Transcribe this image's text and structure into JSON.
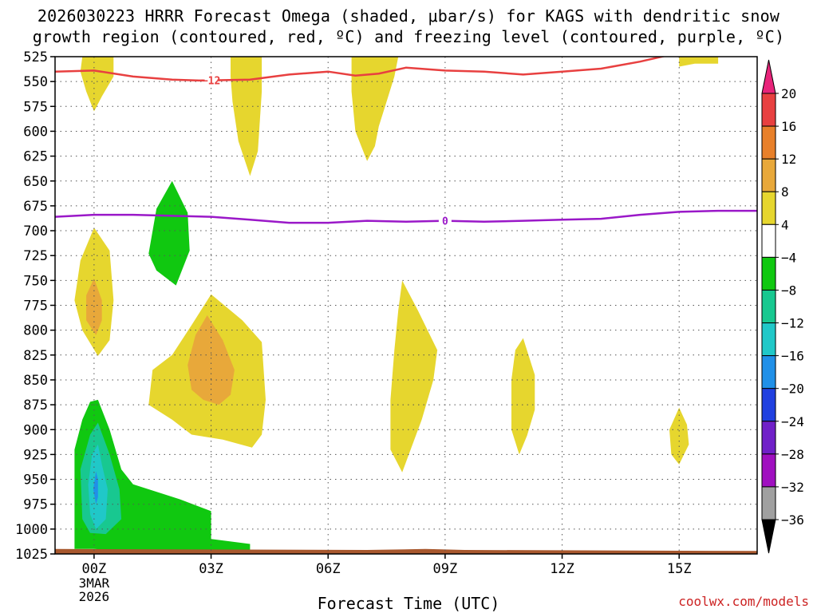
{
  "chart_data": {
    "type": "heatmap",
    "title_line1": "2026030223 HRRR Forecast Omega (shaded, μbar/s) for KAGS with dendritic snow",
    "title_line2": "growth region (contoured, red, ºC) and freezing level (contoured, purple, ºC)",
    "xlabel": "Forecast Time (UTC)",
    "ylabel": "",
    "credit": "coolwx.com/models",
    "x_range_hours": [
      -1.0,
      17.0
    ],
    "y_range_hpa": [
      525,
      1025
    ],
    "x_ticks": [
      {
        "hour": 0,
        "label": "00Z",
        "sub": [
          "3MAR",
          "2026"
        ]
      },
      {
        "hour": 3,
        "label": "03Z"
      },
      {
        "hour": 6,
        "label": "06Z"
      },
      {
        "hour": 9,
        "label": "09Z"
      },
      {
        "hour": 12,
        "label": "12Z"
      },
      {
        "hour": 15,
        "label": "15Z"
      }
    ],
    "y_ticks": [
      525,
      550,
      575,
      600,
      625,
      650,
      675,
      700,
      725,
      750,
      775,
      800,
      825,
      850,
      875,
      900,
      925,
      950,
      975,
      1000,
      1025
    ],
    "colorbar": {
      "labels": [
        "20",
        "16",
        "12",
        "8",
        "4",
        "−4",
        "−8",
        "−12",
        "−16",
        "−20",
        "−24",
        "−28",
        "−32",
        "−36"
      ],
      "colors": [
        "#e8247a",
        "#e84040",
        "#e8802a",
        "#e8a83a",
        "#e6d62e",
        "#ffffff",
        "#10c810",
        "#18c890",
        "#20c8c8",
        "#2090e8",
        "#2040e0",
        "#7020c8",
        "#a010c0",
        "#a0a0a0"
      ]
    },
    "levels": {
      "y4": "#e6d62e",
      "o8": "#e8a83a",
      "g4": "#10c810",
      "g8": "#18c890",
      "g12": "#20c8c8",
      "g16": "#2090e8",
      "ground": "#a8582e"
    },
    "shaded_regions": [
      {
        "level": "y4",
        "points": [
          [
            -0.3,
            525
          ],
          [
            0.5,
            525
          ],
          [
            0.5,
            545
          ],
          [
            0.2,
            565
          ],
          [
            0,
            580
          ],
          [
            -0.2,
            560
          ],
          [
            -0.35,
            540
          ]
        ]
      },
      {
        "level": "y4",
        "points": [
          [
            3.5,
            525
          ],
          [
            4.3,
            525
          ],
          [
            4.3,
            560
          ],
          [
            4.2,
            620
          ],
          [
            4,
            645
          ],
          [
            3.7,
            610
          ],
          [
            3.55,
            570
          ],
          [
            3.5,
            545
          ]
        ]
      },
      {
        "level": "y4",
        "points": [
          [
            6.6,
            525
          ],
          [
            7.8,
            525
          ],
          [
            7.7,
            545
          ],
          [
            7.5,
            570
          ],
          [
            7.3,
            595
          ],
          [
            7.2,
            615
          ],
          [
            7.0,
            630
          ],
          [
            6.7,
            600
          ],
          [
            6.6,
            560
          ]
        ]
      },
      {
        "level": "y4",
        "points": [
          [
            15,
            524
          ],
          [
            16,
            524
          ],
          [
            16,
            532
          ],
          [
            15.4,
            532
          ],
          [
            15,
            535
          ]
        ]
      },
      {
        "level": "y4",
        "points": [
          [
            0,
            697
          ],
          [
            0.4,
            720
          ],
          [
            0.5,
            770
          ],
          [
            0.4,
            810
          ],
          [
            0.1,
            826
          ],
          [
            -0.3,
            800
          ],
          [
            -0.5,
            770
          ],
          [
            -0.35,
            730
          ]
        ]
      },
      {
        "level": "o8",
        "points": [
          [
            0,
            748
          ],
          [
            0.2,
            770
          ],
          [
            0.2,
            790
          ],
          [
            0.05,
            805
          ],
          [
            -0.2,
            790
          ],
          [
            -0.2,
            765
          ]
        ]
      },
      {
        "level": "y4",
        "points": [
          [
            3,
            764
          ],
          [
            3.8,
            790
          ],
          [
            4.3,
            812
          ],
          [
            4.4,
            870
          ],
          [
            4.3,
            905
          ],
          [
            4.05,
            918
          ],
          [
            3.3,
            910
          ],
          [
            2.5,
            905
          ],
          [
            2,
            890
          ],
          [
            1.4,
            875
          ],
          [
            1.5,
            840
          ],
          [
            2,
            825
          ],
          [
            2.5,
            795
          ]
        ]
      },
      {
        "level": "o8",
        "points": [
          [
            2.9,
            785
          ],
          [
            3.3,
            810
          ],
          [
            3.6,
            840
          ],
          [
            3.5,
            865
          ],
          [
            3.2,
            875
          ],
          [
            2.8,
            870
          ],
          [
            2.5,
            860
          ],
          [
            2.4,
            835
          ],
          [
            2.6,
            805
          ]
        ]
      },
      {
        "level": "g4",
        "points": [
          [
            2,
            650
          ],
          [
            2.4,
            682
          ],
          [
            2.45,
            720
          ],
          [
            2.1,
            755
          ],
          [
            1.6,
            740
          ],
          [
            1.4,
            723
          ],
          [
            1.6,
            678
          ]
        ]
      },
      {
        "level": "y4",
        "points": [
          [
            7.9,
            750
          ],
          [
            8.3,
            780
          ],
          [
            8.8,
            820
          ],
          [
            8.7,
            850
          ],
          [
            8.4,
            890
          ],
          [
            7.9,
            943
          ],
          [
            7.6,
            920
          ],
          [
            7.6,
            870
          ],
          [
            7.7,
            820
          ],
          [
            7.8,
            780
          ]
        ]
      },
      {
        "level": "y4",
        "points": [
          [
            11,
            808
          ],
          [
            11.3,
            845
          ],
          [
            11.3,
            880
          ],
          [
            11.1,
            906
          ],
          [
            10.9,
            925
          ],
          [
            10.7,
            900
          ],
          [
            10.7,
            850
          ],
          [
            10.8,
            820
          ]
        ]
      },
      {
        "level": "y4",
        "points": [
          [
            15,
            878
          ],
          [
            15.2,
            895
          ],
          [
            15.25,
            915
          ],
          [
            15,
            935
          ],
          [
            14.8,
            925
          ],
          [
            14.75,
            900
          ]
        ]
      },
      {
        "level": "g4",
        "points": [
          [
            -0.5,
            1020
          ],
          [
            -0.5,
            920
          ],
          [
            -0.3,
            890
          ],
          [
            -0.1,
            872
          ],
          [
            0.1,
            870
          ],
          [
            0.4,
            900
          ],
          [
            0.7,
            940
          ],
          [
            1,
            955
          ],
          [
            2.2,
            970
          ],
          [
            3,
            982
          ],
          [
            3,
            1010
          ],
          [
            4,
            1015
          ],
          [
            4,
            1022
          ],
          [
            1,
            1022
          ],
          [
            0,
            1020
          ]
        ]
      },
      {
        "level": "g8",
        "points": [
          [
            -0.35,
            940
          ],
          [
            -0.1,
            905
          ],
          [
            0.1,
            893
          ],
          [
            0.4,
            925
          ],
          [
            0.65,
            960
          ],
          [
            0.7,
            990
          ],
          [
            0.3,
            1005
          ],
          [
            -0.1,
            1004
          ],
          [
            -0.3,
            990
          ]
        ]
      },
      {
        "level": "g12",
        "points": [
          [
            -0.05,
            925
          ],
          [
            0.1,
            915
          ],
          [
            0.2,
            935
          ],
          [
            0.35,
            960
          ],
          [
            0.3,
            990
          ],
          [
            0.05,
            1000
          ],
          [
            -0.1,
            985
          ],
          [
            -0.15,
            955
          ]
        ]
      },
      {
        "level": "g16",
        "points": [
          [
            0.05,
            942
          ],
          [
            0.1,
            950
          ],
          [
            0.1,
            968
          ],
          [
            0.05,
            975
          ],
          [
            -0.02,
            960
          ]
        ]
      }
    ],
    "ground_band": {
      "points": [
        [
          -1,
          1025
        ],
        [
          17,
          1025
        ],
        [
          17,
          1022
        ],
        [
          9.5,
          1021
        ],
        [
          8.5,
          1020
        ],
        [
          7,
          1021
        ],
        [
          -1,
          1020
        ]
      ]
    },
    "contours": [
      {
        "name": "dendritic-growth-region",
        "color": "#e84040",
        "label": "−12",
        "label_at_hour": 3.0,
        "points": [
          [
            -1,
            540
          ],
          [
            0,
            539
          ],
          [
            1,
            545
          ],
          [
            2,
            548
          ],
          [
            2.7,
            549
          ],
          [
            4,
            548
          ],
          [
            5,
            543
          ],
          [
            6,
            540
          ],
          [
            6.7,
            544
          ],
          [
            7.3,
            542
          ],
          [
            8,
            536
          ],
          [
            9,
            539
          ],
          [
            10,
            540
          ],
          [
            11,
            543
          ],
          [
            12,
            540
          ],
          [
            13,
            537
          ],
          [
            14,
            530
          ],
          [
            15,
            521
          ],
          [
            17,
            519
          ]
        ]
      },
      {
        "name": "freezing-level",
        "color": "#9a18c8",
        "label": "0",
        "label_at_hour": 9.0,
        "points": [
          [
            -1,
            686
          ],
          [
            0,
            684
          ],
          [
            1,
            684
          ],
          [
            3,
            686
          ],
          [
            4,
            689
          ],
          [
            5,
            692
          ],
          [
            6,
            692
          ],
          [
            7,
            690
          ],
          [
            8,
            691
          ],
          [
            9,
            690
          ],
          [
            10,
            691
          ],
          [
            11,
            690
          ],
          [
            12,
            689
          ],
          [
            13,
            688
          ],
          [
            14,
            684
          ],
          [
            15,
            681
          ],
          [
            16,
            680
          ],
          [
            17,
            680
          ]
        ]
      }
    ]
  }
}
